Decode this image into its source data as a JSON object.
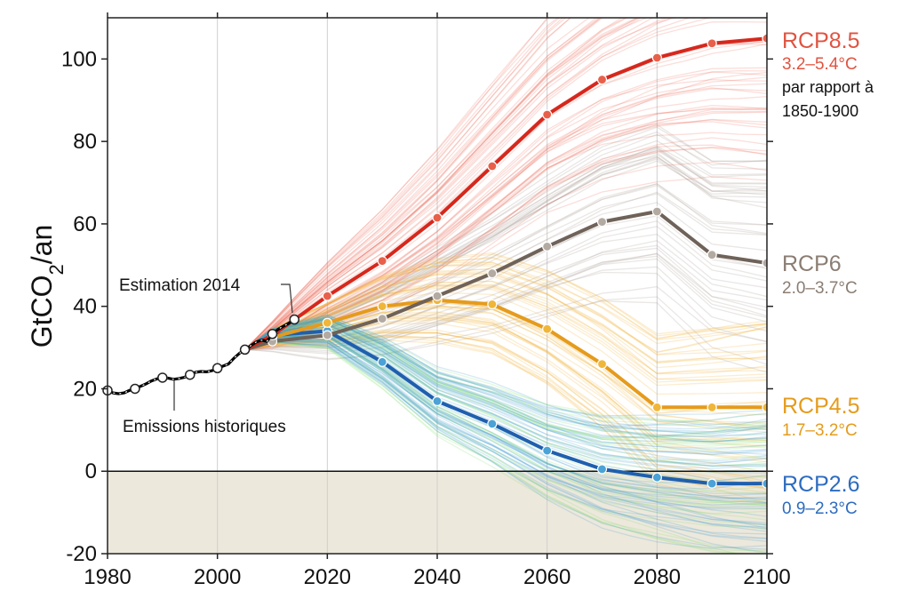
{
  "chart_data": {
    "type": "line",
    "ylabel_main": "GtCO",
    "ylabel_sub": "2",
    "ylabel_tail": "/an",
    "xlim": [
      1980,
      2100
    ],
    "ylim": [
      -20,
      110
    ],
    "x_ticks": [
      1980,
      2000,
      2020,
      2040,
      2060,
      2080,
      2100
    ],
    "y_ticks": [
      -20,
      0,
      20,
      40,
      60,
      80,
      100
    ],
    "grid": "vertical",
    "negative_band_color": "#ede8dc",
    "historical": {
      "name": "Emissions historiques",
      "color": "#000000",
      "x": [
        1980,
        1981,
        1982,
        1983,
        1984,
        1985,
        1986,
        1987,
        1988,
        1989,
        1990,
        1991,
        1992,
        1993,
        1994,
        1995,
        1996,
        1997,
        1998,
        1999,
        2000,
        2001,
        2002,
        2003,
        2004,
        2005,
        2006,
        2007,
        2008,
        2009,
        2010,
        2011,
        2012,
        2013,
        2014
      ],
      "y": [
        19.6,
        19.0,
        18.8,
        19.0,
        19.6,
        20.0,
        20.6,
        21.2,
        21.9,
        22.4,
        22.7,
        22.6,
        22.3,
        22.5,
        22.8,
        23.4,
        24.0,
        24.2,
        24.1,
        24.4,
        25.0,
        25.5,
        26.0,
        27.4,
        28.6,
        29.5,
        30.4,
        31.3,
        31.8,
        31.5,
        33.3,
        34.4,
        35.2,
        35.9,
        36.8
      ],
      "markers_x": [
        1980,
        1985,
        1990,
        1995,
        2000,
        2005,
        2010,
        2014
      ]
    },
    "annotation_estimate": "Estimation 2014",
    "annotation_historical": "Emissions historiques",
    "series": [
      {
        "name": "RCP8.5",
        "range": "3.2–5.4°C",
        "note": [
          "par rapport à",
          "1850-1900"
        ],
        "color": "#d6281d",
        "label_color": "#e05340",
        "ens_color": "#e8604a",
        "x": [
          2005,
          2010,
          2020,
          2030,
          2040,
          2050,
          2060,
          2070,
          2080,
          2090,
          2100
        ],
        "y": [
          29.5,
          33.0,
          42.5,
          51.0,
          61.5,
          74.0,
          86.5,
          95.0,
          100.3,
          103.8,
          105.0
        ]
      },
      {
        "name": "RCP6",
        "range": "2.0–3.7°C",
        "color": "#6f6259",
        "label_color": "#8a7d73",
        "ens_color": "#b3aaa2",
        "x": [
          2005,
          2010,
          2020,
          2030,
          2040,
          2050,
          2060,
          2070,
          2080,
          2090,
          2100
        ],
        "y": [
          29.5,
          31.5,
          33.0,
          37.0,
          42.5,
          48.0,
          54.5,
          60.5,
          63.0,
          52.5,
          50.5
        ]
      },
      {
        "name": "RCP4.5",
        "range": "1.7–3.2°C",
        "color": "#e59b1c",
        "label_color": "#e59b1c",
        "ens_color": "#f0b63a",
        "x": [
          2005,
          2010,
          2020,
          2030,
          2040,
          2050,
          2060,
          2070,
          2080,
          2090,
          2100
        ],
        "y": [
          29.5,
          32.5,
          36.0,
          40.0,
          41.5,
          40.5,
          34.5,
          26.0,
          15.5,
          15.5,
          15.5
        ]
      },
      {
        "name": "RCP2.6",
        "range": "0.9–2.3°C",
        "color": "#1f5fae",
        "label_color": "#2d6cbf",
        "ens_color": "#4aa2d6",
        "x": [
          2005,
          2010,
          2020,
          2030,
          2040,
          2050,
          2060,
          2070,
          2080,
          2090,
          2100
        ],
        "y": [
          29.5,
          33.0,
          34.0,
          26.5,
          17.0,
          11.5,
          5.0,
          0.5,
          -1.5,
          -3.0,
          -3.0
        ]
      }
    ]
  }
}
